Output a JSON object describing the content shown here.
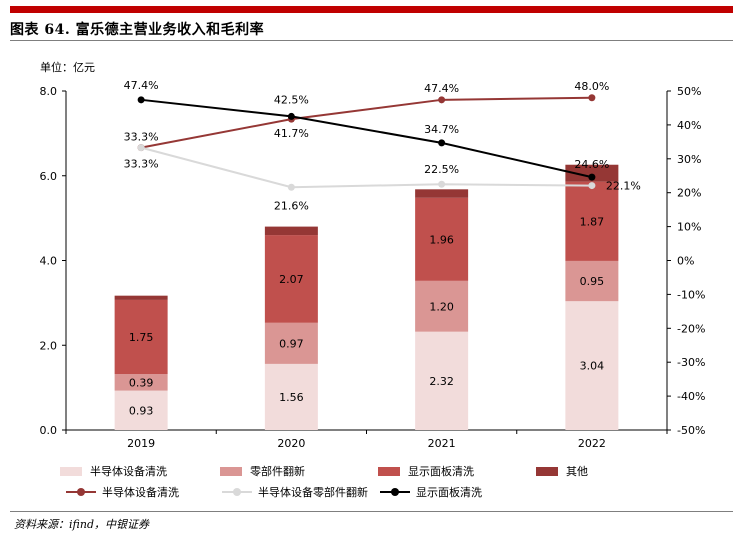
{
  "header": {
    "title": "图表 64. 富乐德主营业务收入和毛利率",
    "unit": "单位：亿元",
    "rule_color": "#c00000"
  },
  "source": "资料来源：ifind，中银证券",
  "chart_data": {
    "type": "bar",
    "stacked": true,
    "categories": [
      "2019",
      "2020",
      "2021",
      "2022"
    ],
    "ylim": [
      0,
      8
    ],
    "yticks": [
      "0.0",
      "2.0",
      "4.0",
      "6.0",
      "8.0"
    ],
    "y2lim": [
      -50,
      50
    ],
    "y2ticks": [
      "-50%",
      "-40%",
      "-30%",
      "-20%",
      "-10%",
      "0%",
      "10%",
      "20%",
      "30%",
      "40%",
      "50%"
    ],
    "series": [
      {
        "name": "半导体设备清洗",
        "color": "#f2dcdb",
        "values": [
          0.93,
          1.56,
          2.32,
          3.04
        ],
        "labels": [
          "0.93",
          "1.56",
          "2.32",
          "3.04"
        ]
      },
      {
        "name": "零部件翻新",
        "color": "#da9694",
        "values": [
          0.39,
          0.97,
          1.2,
          0.95
        ],
        "labels": [
          "0.39",
          "0.97",
          "1.20",
          "0.95"
        ]
      },
      {
        "name": "显示面板清洗",
        "color": "#c0504d",
        "values": [
          1.75,
          2.07,
          1.96,
          1.87
        ],
        "labels": [
          "1.75",
          "2.07",
          "1.96",
          "1.87"
        ]
      },
      {
        "name": "其他",
        "color": "#953735",
        "values": [
          0.1,
          0.2,
          0.2,
          0.4
        ],
        "labels": []
      }
    ],
    "lines": [
      {
        "name": "半导体设备清洗",
        "color": "#953735",
        "values": [
          33.3,
          41.7,
          47.4,
          48.0
        ],
        "labels": [
          "33.3%",
          "41.7%",
          "47.4%",
          "48.0%"
        ]
      },
      {
        "name": "半导体设备零部件翻新",
        "color": "#d9d9d9",
        "values": [
          33.3,
          21.6,
          22.5,
          22.1
        ],
        "labels": [
          "33.3%",
          "21.6%",
          "22.5%",
          "22.1%"
        ]
      },
      {
        "name": "显示面板清洗",
        "color": "#000000",
        "values": [
          47.4,
          42.5,
          34.7,
          24.6
        ],
        "labels": [
          "47.4%",
          "42.5%",
          "34.7%",
          "24.6%"
        ]
      }
    ],
    "legend_position": "bottom",
    "grid": false
  }
}
